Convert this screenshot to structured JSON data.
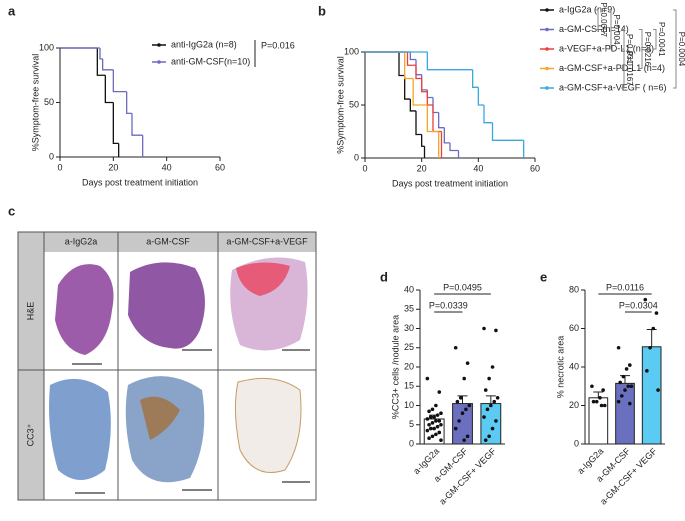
{
  "chart_data": [
    {
      "type": "step",
      "panel_label": "a",
      "x_label": "Days post treatment initiation",
      "y_label": "%Symptom-free survival",
      "xlim": [
        0,
        60
      ],
      "xticks": [
        0,
        20,
        40,
        60
      ],
      "ylim": [
        0,
        100
      ],
      "yticks": [
        0,
        50,
        100
      ],
      "series": [
        {
          "name": "anti-IgG2a (n=8)",
          "color": "#111111",
          "x": [
            0,
            14,
            17,
            20,
            22
          ],
          "values": [
            100,
            75,
            50,
            12.5,
            0
          ]
        },
        {
          "name": "anti-GM-CSF(n=10)",
          "color": "#6b6bbf",
          "x": [
            0,
            15,
            16,
            20,
            25,
            27,
            31
          ],
          "values": [
            100,
            90,
            80,
            60,
            40,
            20,
            0
          ]
        }
      ],
      "p_values": [
        "P=0.016"
      ]
    },
    {
      "type": "step",
      "panel_label": "b",
      "x_label": "Days post treatment initiation",
      "y_label": "%Symptom-free survival",
      "xlim": [
        0,
        60
      ],
      "xticks": [
        0,
        20,
        40,
        60
      ],
      "ylim": [
        0,
        100
      ],
      "yticks": [
        0,
        50,
        100
      ],
      "series": [
        {
          "name": "a-IgG2a (n=9)",
          "color": "#111111",
          "x": [
            0,
            12,
            14,
            16,
            18,
            20,
            21
          ],
          "values": [
            100,
            77.8,
            55.6,
            44.4,
            22.2,
            11.1,
            0
          ]
        },
        {
          "name": "a-GM-CSF(n=14)",
          "color": "#6b6bbf",
          "x": [
            0,
            16,
            18,
            20,
            22,
            24,
            26,
            28,
            30,
            33
          ],
          "values": [
            100,
            92.9,
            78.6,
            64.3,
            57.1,
            42.9,
            28.6,
            14.3,
            7.1,
            0
          ]
        },
        {
          "name": "a-VEGF+a-PD-L1 (n=8)",
          "color": "#e8413c",
          "x": [
            0,
            15,
            18,
            20,
            22,
            24,
            27
          ],
          "values": [
            100,
            87.5,
            75,
            62.5,
            50,
            25,
            0
          ]
        },
        {
          "name": "a-GM-CSF+a-PD-L1 (n=4)",
          "color": "#f5a623",
          "x": [
            0,
            14,
            17,
            22,
            26
          ],
          "values": [
            100,
            75,
            50,
            25,
            0
          ]
        },
        {
          "name": "a-GM-CSF+a-VEGF ( n=6)",
          "color": "#3aa7e0",
          "x": [
            0,
            22,
            38,
            40,
            42,
            45,
            56
          ],
          "values": [
            100,
            83.3,
            66.7,
            50,
            33.3,
            16.7,
            0
          ]
        }
      ],
      "p_values": [
        "P=0.0007",
        "P=0.004",
        "P=0.031",
        "P=0.0167",
        "P=0.0216",
        "P=0.0041",
        "P=0.0004"
      ]
    },
    {
      "type": "bar",
      "panel_label": "d",
      "y_label": "%CC3+ cells /nodule area",
      "categories": [
        "a-IgG2a",
        "a-GM-CSF",
        "a-GM-CSF+ VEGF"
      ],
      "colors": [
        "#ffffff",
        "#6b6fc0",
        "#5ccbf3"
      ],
      "values": [
        6.5,
        10.5,
        10.5
      ],
      "errors": [
        1,
        2,
        2
      ],
      "points": [
        [
          17,
          13.5,
          10,
          9,
          8.5,
          8,
          7.5,
          7,
          7,
          6.5,
          6,
          6,
          5.5,
          5,
          5,
          4.5,
          4,
          4,
          3.5,
          3,
          2.5,
          2,
          1.5,
          1
        ],
        [
          25,
          21,
          17,
          12,
          11,
          10,
          9,
          8,
          6,
          4,
          2,
          1
        ],
        [
          30,
          29.5,
          20,
          17,
          14,
          12,
          11,
          10,
          9,
          7,
          6,
          4,
          2,
          1
        ]
      ],
      "ylim": [
        0,
        40
      ],
      "yticks": [
        0,
        5,
        10,
        15,
        20,
        25,
        30,
        35,
        40
      ],
      "comparisons": [
        {
          "label": "P=0.0339",
          "groups": [
            "a-IgG2a",
            "a-GM-CSF"
          ]
        },
        {
          "label": "P=0.0495",
          "groups": [
            "a-IgG2a",
            "a-GM-CSF+ VEGF"
          ]
        }
      ]
    },
    {
      "type": "bar",
      "panel_label": "e",
      "y_label": "% necrotic area",
      "categories": [
        "a-IgG2a",
        "a-GM-CSF",
        "a-GM-CSF+ VEGF"
      ],
      "colors": [
        "#ffffff",
        "#6b6fc0",
        "#5ccbf3"
      ],
      "values": [
        24,
        31.5,
        50.5
      ],
      "errors": [
        3,
        4,
        9
      ],
      "points": [
        [
          30,
          28,
          24,
          22,
          22,
          20,
          20
        ],
        [
          50,
          41,
          39,
          35,
          32,
          30,
          30,
          28,
          25,
          22,
          21
        ],
        [
          75,
          68,
          60,
          50,
          38,
          28
        ]
      ],
      "ylim": [
        0,
        80
      ],
      "yticks": [
        0,
        20,
        40,
        60,
        80
      ],
      "comparisons": [
        {
          "label": "P=0.0304",
          "groups": [
            "a-GM-CSF",
            "a-GM-CSF+ VEGF"
          ]
        },
        {
          "label": "P=0.0116",
          "groups": [
            "a-IgG2a",
            "a-GM-CSF+ VEGF"
          ]
        }
      ]
    }
  ],
  "panel_c": {
    "panel_label": "c",
    "columns": [
      "a-IgG2a",
      "a-GM-CSF",
      "a-GM-CSF+a-VEGF"
    ],
    "rows": [
      "H&E",
      "CC3⁺"
    ]
  }
}
